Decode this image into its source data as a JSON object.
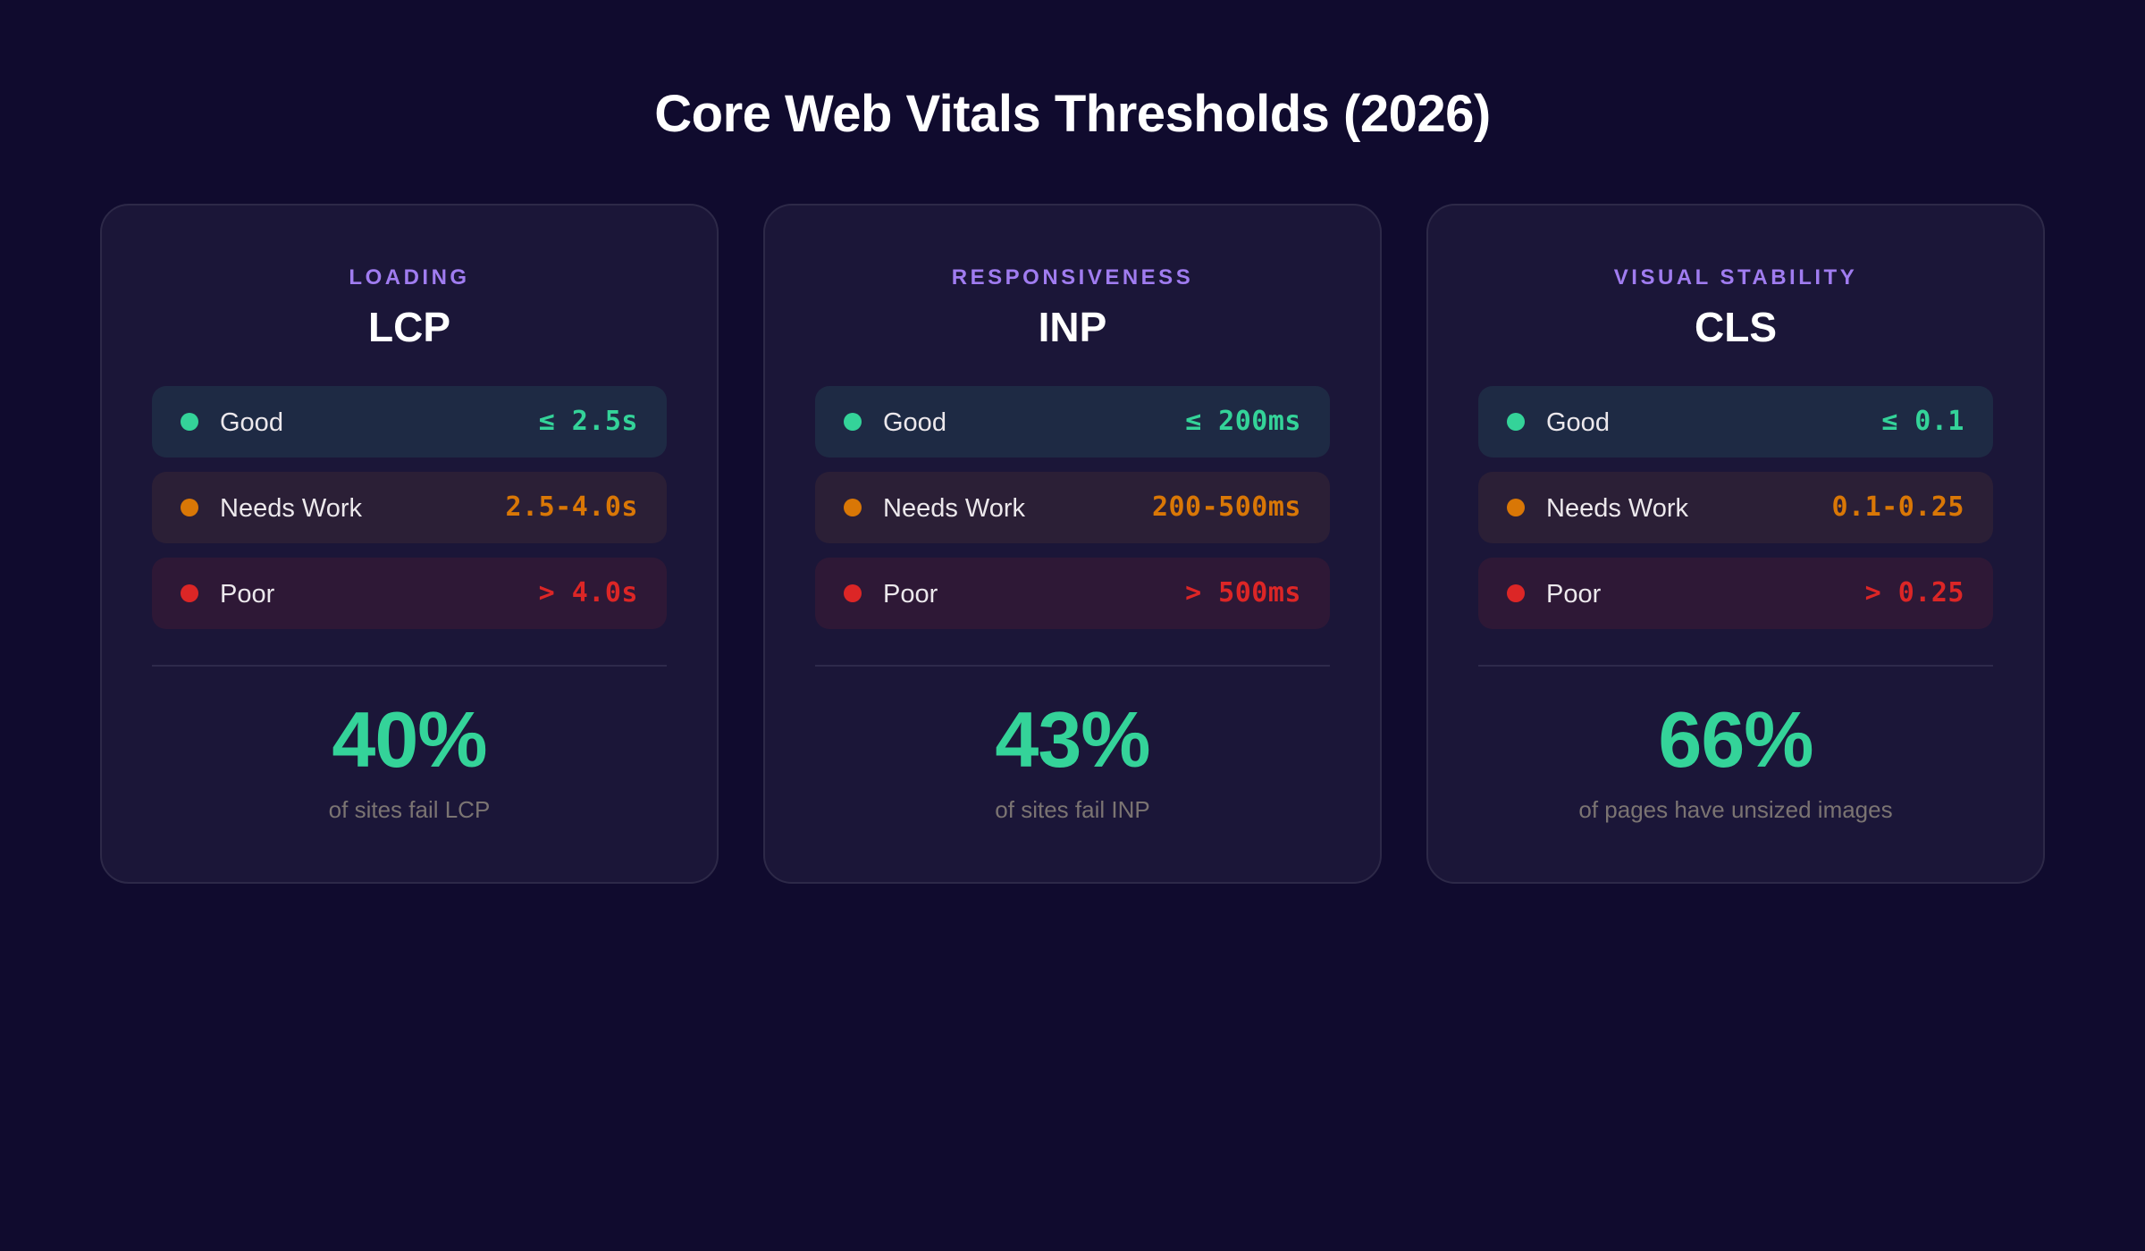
{
  "page": {
    "title": "Core Web Vitals Thresholds (2026)"
  },
  "colors": {
    "background": "#100b2e",
    "card_background": "#1b1638",
    "card_border": "#2d2948",
    "category_accent": "#a07cf0",
    "good": "#34d399",
    "needs_work": "#d97706",
    "poor": "#dc2626",
    "stat": "#34d399",
    "caption": "#7b7472"
  },
  "cards": [
    {
      "category": "LOADING",
      "metric": "LCP",
      "thresholds": [
        {
          "status": "good",
          "label": "Good",
          "icon": "status-dot-green",
          "value": "≤ 2.5s"
        },
        {
          "status": "needs",
          "label": "Needs Work",
          "icon": "status-dot-orange",
          "value": "2.5-4.0s"
        },
        {
          "status": "poor",
          "label": "Poor",
          "icon": "status-dot-red",
          "value": "> 4.0s"
        }
      ],
      "stat": "40%",
      "caption": "of sites fail LCP"
    },
    {
      "category": "RESPONSIVENESS",
      "metric": "INP",
      "thresholds": [
        {
          "status": "good",
          "label": "Good",
          "icon": "status-dot-green",
          "value": "≤ 200ms"
        },
        {
          "status": "needs",
          "label": "Needs Work",
          "icon": "status-dot-orange",
          "value": "200-500ms"
        },
        {
          "status": "poor",
          "label": "Poor",
          "icon": "status-dot-red",
          "value": "> 500ms"
        }
      ],
      "stat": "43%",
      "caption": "of sites fail INP"
    },
    {
      "category": "VISUAL STABILITY",
      "metric": "CLS",
      "thresholds": [
        {
          "status": "good",
          "label": "Good",
          "icon": "status-dot-green",
          "value": "≤ 0.1"
        },
        {
          "status": "needs",
          "label": "Needs Work",
          "icon": "status-dot-orange",
          "value": "0.1-0.25"
        },
        {
          "status": "poor",
          "label": "Poor",
          "icon": "status-dot-red",
          "value": "> 0.25"
        }
      ],
      "stat": "66%",
      "caption": "of pages have unsized images"
    }
  ]
}
